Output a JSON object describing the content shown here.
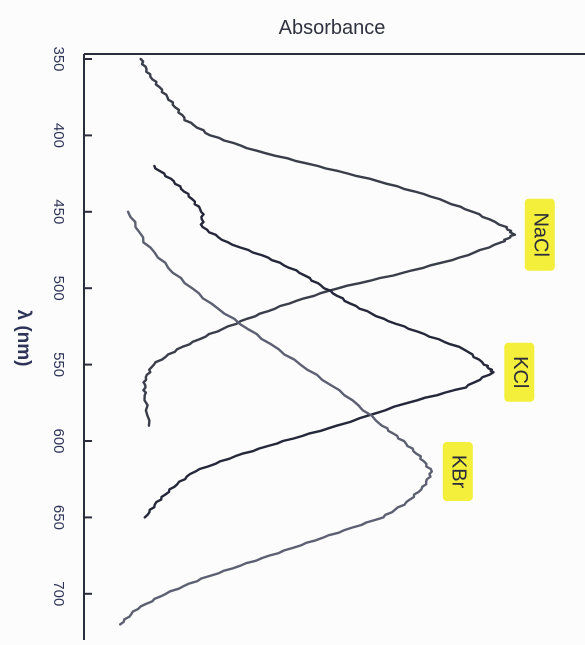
{
  "chart_data": {
    "type": "line",
    "orientation": "rotated-90",
    "title": "",
    "top_axis_label": "Absorbance",
    "wavelength_axis_label": "λ (nm)",
    "wavelength_range": [
      350,
      720
    ],
    "wavelength_ticks": [
      "350",
      "400",
      "450",
      "500",
      "550",
      "600",
      "650",
      "700"
    ],
    "absorbance_range": [
      0,
      1
    ],
    "grid": false,
    "legend": "inline labels at curve peaks",
    "label_highlight_color": "#f3ef3a",
    "series": [
      {
        "name": "NaCl",
        "color": "#3a3d4a",
        "peak_nm": 465,
        "points": [
          [
            350,
            0.07
          ],
          [
            360,
            0.09
          ],
          [
            370,
            0.12
          ],
          [
            380,
            0.15
          ],
          [
            390,
            0.18
          ],
          [
            400,
            0.24
          ],
          [
            410,
            0.35
          ],
          [
            420,
            0.5
          ],
          [
            430,
            0.65
          ],
          [
            440,
            0.78
          ],
          [
            450,
            0.88
          ],
          [
            460,
            0.96
          ],
          [
            465,
            0.98
          ],
          [
            470,
            0.95
          ],
          [
            480,
            0.85
          ],
          [
            490,
            0.71
          ],
          [
            500,
            0.55
          ],
          [
            510,
            0.43
          ],
          [
            520,
            0.33
          ],
          [
            530,
            0.24
          ],
          [
            540,
            0.16
          ],
          [
            550,
            0.1
          ],
          [
            560,
            0.08
          ],
          [
            570,
            0.08
          ],
          [
            590,
            0.09
          ]
        ]
      },
      {
        "name": "KCl",
        "color": "#25273a",
        "peak_nm": 555,
        "points": [
          [
            420,
            0.1
          ],
          [
            430,
            0.15
          ],
          [
            440,
            0.19
          ],
          [
            450,
            0.22
          ],
          [
            460,
            0.22
          ],
          [
            470,
            0.28
          ],
          [
            480,
            0.38
          ],
          [
            490,
            0.46
          ],
          [
            500,
            0.52
          ],
          [
            510,
            0.58
          ],
          [
            520,
            0.66
          ],
          [
            530,
            0.76
          ],
          [
            540,
            0.86
          ],
          [
            550,
            0.91
          ],
          [
            555,
            0.93
          ],
          [
            565,
            0.86
          ],
          [
            575,
            0.72
          ],
          [
            590,
            0.55
          ],
          [
            600,
            0.42
          ],
          [
            610,
            0.3
          ],
          [
            620,
            0.2
          ],
          [
            630,
            0.15
          ],
          [
            640,
            0.11
          ],
          [
            650,
            0.08
          ]
        ]
      },
      {
        "name": "KBr",
        "color": "#5d6072",
        "peak_nm": 620,
        "points": [
          [
            450,
            0.04
          ],
          [
            470,
            0.08
          ],
          [
            490,
            0.15
          ],
          [
            510,
            0.24
          ],
          [
            530,
            0.35
          ],
          [
            550,
            0.46
          ],
          [
            570,
            0.57
          ],
          [
            590,
            0.66
          ],
          [
            600,
            0.71
          ],
          [
            610,
            0.75
          ],
          [
            620,
            0.78
          ],
          [
            630,
            0.76
          ],
          [
            640,
            0.72
          ],
          [
            650,
            0.66
          ],
          [
            660,
            0.55
          ],
          [
            670,
            0.44
          ],
          [
            680,
            0.33
          ],
          [
            690,
            0.22
          ],
          [
            700,
            0.13
          ],
          [
            710,
            0.06
          ],
          [
            720,
            0.02
          ]
        ]
      }
    ]
  }
}
